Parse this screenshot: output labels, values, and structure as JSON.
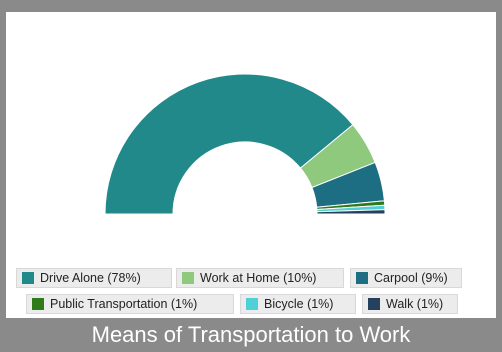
{
  "chart_data": {
    "type": "pie",
    "variant": "semi-donut",
    "title": "Means of Transportation to Work",
    "series": [
      {
        "name": "Drive Alone",
        "value": 78,
        "label": "Drive Alone (78%)",
        "color": "#22898a"
      },
      {
        "name": "Work at Home",
        "value": 10,
        "label": "Work at Home (10%)",
        "color": "#8ec97e"
      },
      {
        "name": "Carpool",
        "value": 9,
        "label": "Carpool (9%)",
        "color": "#1d6e82"
      },
      {
        "name": "Public Transportation",
        "value": 1,
        "label": "Public Transportation (1%)",
        "color": "#2f7b1c"
      },
      {
        "name": "Bicycle",
        "value": 1,
        "label": "Bicycle (1%)",
        "color": "#4fd0d6"
      },
      {
        "name": "Walk",
        "value": 1,
        "label": "Walk (1%)",
        "color": "#25415e"
      }
    ],
    "legend_position": "bottom"
  }
}
